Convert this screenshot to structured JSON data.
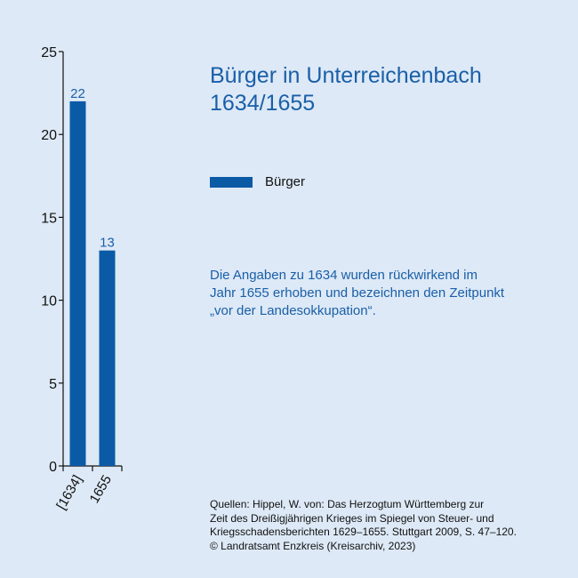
{
  "chart_data": {
    "type": "bar",
    "categories": [
      "[1634]",
      "1655"
    ],
    "series": [
      {
        "name": "Bürger",
        "values": [
          22,
          13
        ]
      }
    ],
    "data_labels": [
      "22",
      "13"
    ],
    "title": [
      "Bürger in Unterreichenbach",
      "1634/1655"
    ],
    "xlabel": "",
    "ylabel": "",
    "ylim": [
      0,
      25
    ],
    "yticks": [
      0,
      5,
      10,
      15,
      20,
      25
    ],
    "grid": false,
    "legend_position": "right",
    "colors": {
      "bar": "#0b5aa6",
      "label": "#1a5fa8",
      "axis": "#111111"
    }
  },
  "legend": {
    "label": "Bürger"
  },
  "note": [
    "Die Angaben zu 1634 wurden rückwirkend im",
    "Jahr 1655 erhoben und bezeichnen den Zeitpunkt",
    "„vor der Landesokkupation“."
  ],
  "sources": [
    "Quellen: Hippel, W. von: Das Herzogtum Württemberg zur",
    "Zeit des Dreißigjährigen Krieges im Spiegel von Steuer- und",
    "Kriegsschadensberichten 1629–1655. Stuttgart 2009, S. 47–120.",
    "© Landratsamt Enzkreis (Kreisarchiv, 2023)"
  ]
}
